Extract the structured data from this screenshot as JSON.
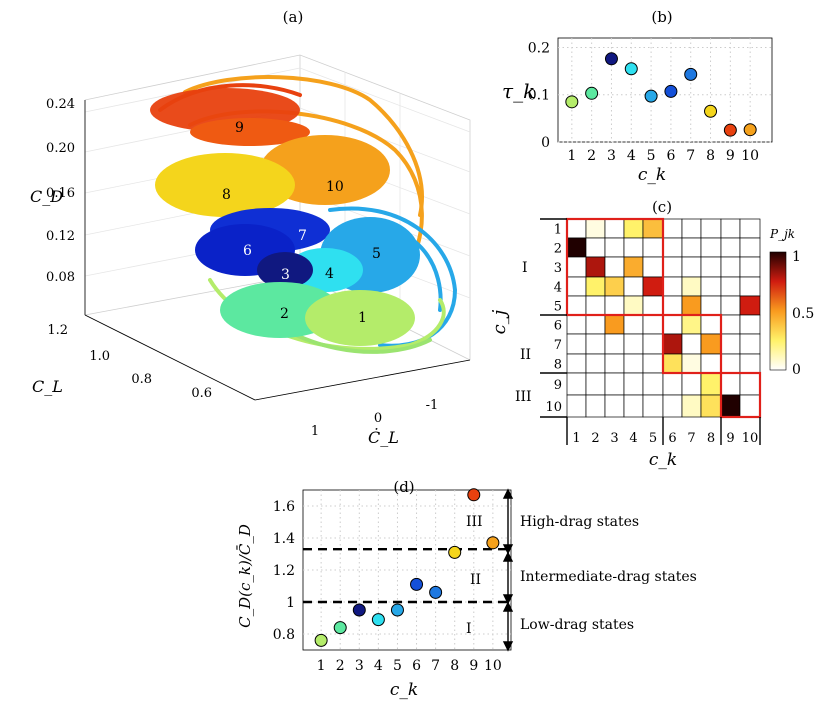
{
  "chart_data": [
    {
      "panel": "(a)",
      "type": "scatter",
      "title": "(a)",
      "zlabel": "C_D",
      "ylabel": "C_L",
      "xlabel": "Ċ_L",
      "z_ticks": [
        "0.24",
        "0.20",
        "0.16",
        "0.12",
        "0.08"
      ],
      "y_ticks": [
        "1.2",
        "1.0",
        "0.8",
        "0.6"
      ],
      "x_ticks": [
        "1",
        "0",
        "-1"
      ],
      "cluster_labels": [
        {
          "k": "9",
          "color": "#e8410f"
        },
        {
          "k": "10",
          "color": "#f5a11c"
        },
        {
          "k": "8",
          "color": "#f4d51c"
        },
        {
          "k": "7",
          "color": "#0f2fd4"
        },
        {
          "k": "6",
          "color": "#0a22c8"
        },
        {
          "k": "5",
          "color": "#27a8e8"
        },
        {
          "k": "4",
          "color": "#2fe0f0"
        },
        {
          "k": "3",
          "color": "#101880"
        },
        {
          "k": "2",
          "color": "#5ce8a0"
        },
        {
          "k": "1",
          "color": "#b4ec6a"
        }
      ]
    },
    {
      "panel": "(b)",
      "type": "scatter",
      "title": "(b)",
      "xlabel": "c_k",
      "ylabel": "τ_k",
      "ylim": [
        0,
        0.22
      ],
      "y_ticks": [
        "0",
        "0.1",
        "0.2"
      ],
      "x": [
        1,
        2,
        3,
        4,
        5,
        6,
        7,
        8,
        9,
        10
      ],
      "values": [
        0.085,
        0.103,
        0.176,
        0.155,
        0.097,
        0.107,
        0.143,
        0.065,
        0.025,
        0.026
      ],
      "colors": [
        "#b4ec6a",
        "#5ce8a0",
        "#101880",
        "#2fe0f0",
        "#27a8e8",
        "#1450d8",
        "#1e78e0",
        "#f4d51c",
        "#e8410f",
        "#f5a11c"
      ]
    },
    {
      "panel": "(c)",
      "type": "heatmap",
      "title": "(c)",
      "xlabel": "c_k",
      "ylabel": "c_j",
      "colorbar_label": "P_jk",
      "colorbar_ticks": [
        "1",
        "0.5",
        "0"
      ],
      "row_labels": [
        "1",
        "2",
        "3",
        "4",
        "5",
        "6",
        "7",
        "8",
        "9",
        "10"
      ],
      "col_labels": [
        "1",
        "2",
        "3",
        "4",
        "5",
        "6",
        "7",
        "8",
        "9",
        "10"
      ],
      "groups": [
        "I",
        "II",
        "III"
      ],
      "values": [
        [
          0,
          0.05,
          0,
          0.25,
          0.4,
          0,
          0,
          0,
          0,
          0
        ],
        [
          1.0,
          0,
          0,
          0,
          0,
          0,
          0,
          0,
          0,
          0
        ],
        [
          0,
          0.8,
          0,
          0.45,
          0,
          0,
          0,
          0,
          0,
          0
        ],
        [
          0,
          0.25,
          0.35,
          0,
          0.75,
          0,
          0.1,
          0,
          0,
          0
        ],
        [
          0,
          0,
          0,
          0.1,
          0,
          0,
          0.5,
          0,
          0,
          0.75
        ],
        [
          0,
          0,
          0.5,
          0,
          0,
          0,
          0.2,
          0,
          0,
          0
        ],
        [
          0,
          0,
          0,
          0,
          0,
          0.8,
          0,
          0.5,
          0,
          0
        ],
        [
          0,
          0,
          0,
          0,
          0,
          0.3,
          0.05,
          0,
          0,
          0
        ],
        [
          0,
          0,
          0,
          0,
          0,
          0,
          0,
          0.25,
          0,
          0
        ],
        [
          0,
          0,
          0,
          0,
          0,
          0,
          0.1,
          0.3,
          1.0,
          0
        ]
      ]
    },
    {
      "panel": "(d)",
      "type": "scatter",
      "title": "(d)",
      "xlabel": "c_k",
      "ylabel": "C_D(c_k)/C̄_D",
      "ylim": [
        0.7,
        1.7
      ],
      "y_ticks": [
        "0.8",
        "1",
        "1.2",
        "1.4",
        "1.6"
      ],
      "x": [
        1,
        2,
        3,
        4,
        5,
        6,
        7,
        8,
        9,
        10
      ],
      "values": [
        0.76,
        0.84,
        0.95,
        0.89,
        0.95,
        1.11,
        1.06,
        1.31,
        1.67,
        1.37
      ],
      "colors": [
        "#b4ec6a",
        "#5ce8a0",
        "#101880",
        "#2fe0f0",
        "#27a8e8",
        "#1450d8",
        "#1e78e0",
        "#f4d51c",
        "#e8410f",
        "#f5a11c"
      ],
      "thresholds": [
        1.0,
        1.33
      ],
      "region_labels": [
        "I",
        "II",
        "III"
      ],
      "annotations": [
        "High-drag states",
        "Intermediate-drag states",
        "Low-drag states"
      ]
    }
  ]
}
